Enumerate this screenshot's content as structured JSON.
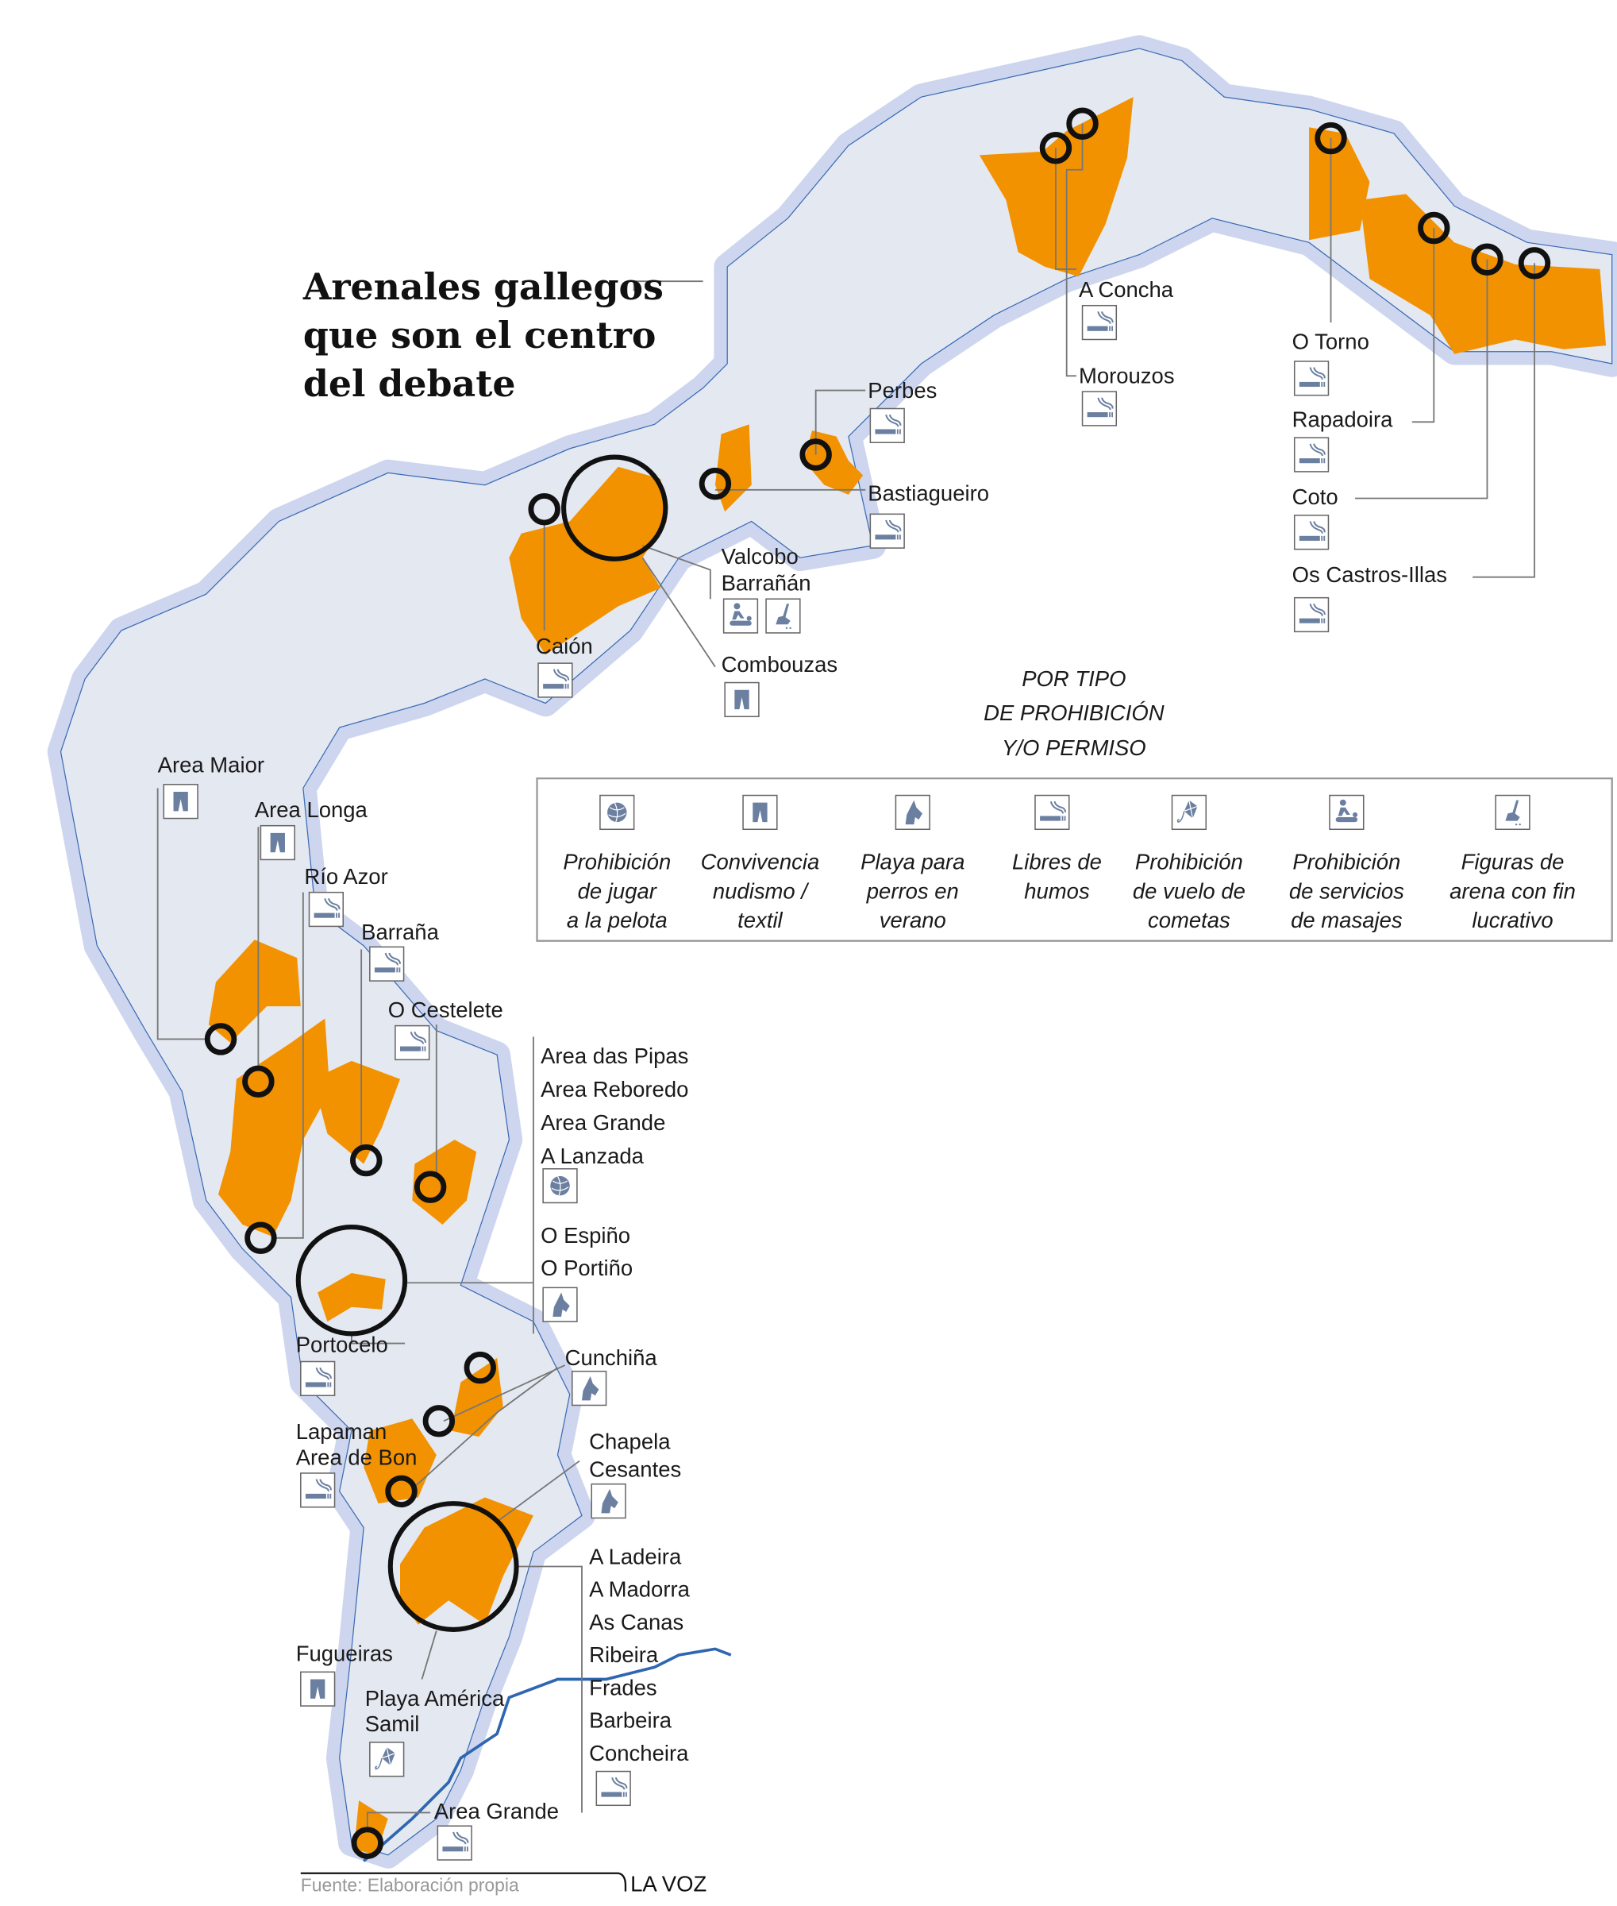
{
  "title": [
    "Arenales gallegos",
    "que son el centro",
    "del debate"
  ],
  "colors": {
    "land": "#e4e8f1",
    "halo": "#cdd6ee",
    "highlight": "#f39200",
    "icon": "#6b7fa0",
    "river": "#2e66b0",
    "marker": "#111111"
  },
  "legend": {
    "heading": [
      "POR TIPO",
      "DE PROHIBICIÓN",
      "Y/O PERMISO"
    ],
    "items": [
      {
        "icon": "ball-icon",
        "label": [
          "Prohibición",
          "de jugar",
          "a la pelota"
        ]
      },
      {
        "icon": "shorts-icon",
        "label": [
          "Convivencia",
          "nudismo /",
          "textil"
        ]
      },
      {
        "icon": "dog-icon",
        "label": [
          "Playa para",
          "perros en",
          "verano"
        ]
      },
      {
        "icon": "smoke-icon",
        "label": [
          "Libres de",
          "humos"
        ]
      },
      {
        "icon": "kite-icon",
        "label": [
          "Prohibición",
          "de vuelo de",
          "cometas"
        ]
      },
      {
        "icon": "massage-icon",
        "label": [
          "Prohibición",
          "de servicios",
          "de masajes"
        ]
      },
      {
        "icon": "sand-icon",
        "label": [
          "Figuras de",
          "arena con fin",
          "lucrativo"
        ]
      }
    ]
  },
  "beaches": [
    {
      "names": [
        "A Concha"
      ],
      "icons": [
        "smoke-icon"
      ]
    },
    {
      "names": [
        "Morouzos"
      ],
      "icons": [
        "smoke-icon"
      ]
    },
    {
      "names": [
        "O Torno"
      ],
      "icons": [
        "smoke-icon"
      ]
    },
    {
      "names": [
        "Rapadoira"
      ],
      "icons": [
        "smoke-icon"
      ]
    },
    {
      "names": [
        "Coto"
      ],
      "icons": [
        "smoke-icon"
      ]
    },
    {
      "names": [
        "Os Castros-Illas"
      ],
      "icons": [
        "smoke-icon"
      ]
    },
    {
      "names": [
        "Perbes"
      ],
      "icons": [
        "smoke-icon"
      ]
    },
    {
      "names": [
        "Bastiagueiro"
      ],
      "icons": [
        "smoke-icon"
      ]
    },
    {
      "names": [
        "Valcobo",
        "Barrañán"
      ],
      "icons": [
        "massage-icon",
        "sand-icon"
      ]
    },
    {
      "names": [
        "Caión"
      ],
      "icons": [
        "smoke-icon"
      ]
    },
    {
      "names": [
        "Combouzas"
      ],
      "icons": [
        "shorts-icon"
      ]
    },
    {
      "names": [
        "Area Maior"
      ],
      "icons": [
        "shorts-icon"
      ]
    },
    {
      "names": [
        "Area Longa"
      ],
      "icons": [
        "shorts-icon"
      ]
    },
    {
      "names": [
        "Río Azor"
      ],
      "icons": [
        "smoke-icon"
      ]
    },
    {
      "names": [
        "Barraña"
      ],
      "icons": [
        "smoke-icon"
      ]
    },
    {
      "names": [
        "O Cestelete"
      ],
      "icons": [
        "smoke-icon"
      ]
    },
    {
      "names": [
        "Area das Pipas",
        "Area Reboredo",
        "Area Grande",
        "A Lanzada"
      ],
      "icons": [
        "ball-icon"
      ]
    },
    {
      "names": [
        "O Espiño",
        "O Portiño"
      ],
      "icons": [
        "dog-icon"
      ]
    },
    {
      "names": [
        "Portocelo"
      ],
      "icons": [
        "smoke-icon"
      ]
    },
    {
      "names": [
        "Cunchiña"
      ],
      "icons": [
        "dog-icon"
      ]
    },
    {
      "names": [
        "Lapaman",
        "Area de Bon"
      ],
      "icons": [
        "smoke-icon"
      ]
    },
    {
      "names": [
        "Chapela",
        "Cesantes"
      ],
      "icons": [
        "dog-icon"
      ]
    },
    {
      "names": [
        "A Ladeira",
        "A Madorra",
        "As Canas",
        "Ribeira",
        "Frades",
        "Barbeira",
        "Concheira"
      ],
      "icons": [
        "smoke-icon"
      ]
    },
    {
      "names": [
        "Fugueiras"
      ],
      "icons": [
        "shorts-icon"
      ]
    },
    {
      "names": [
        "Playa América",
        "Samil"
      ],
      "icons": [
        "kite-icon"
      ]
    },
    {
      "names": [
        "Area Grande"
      ],
      "icons": [
        "smoke-icon"
      ]
    }
  ],
  "footer": {
    "source": "Fuente: Elaboración propia",
    "brand": "LA VOZ"
  }
}
